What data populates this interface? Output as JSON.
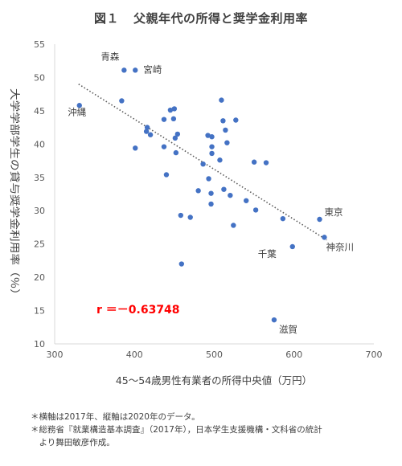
{
  "chart_data": {
    "type": "scatter",
    "title_num": "図１",
    "title": "父親年代の所得と奨学金利用率",
    "xlabel": "45～54歳男性有業者の所得中央値（万円）",
    "ylabel": "大学学部学生の貸与奨学金利用率（％）",
    "xlim": [
      300,
      700
    ],
    "ylim": [
      10,
      55
    ],
    "xticks": [
      300,
      400,
      500,
      600,
      700
    ],
    "yticks": [
      10,
      15,
      20,
      25,
      30,
      35,
      40,
      45,
      50,
      55
    ],
    "grid": false,
    "marker_color": "#4472C4",
    "trendline": {
      "style": "dotted",
      "color": "#595959",
      "x": [
        330,
        641
      ],
      "y": [
        49.0,
        25.6
      ]
    },
    "correlation_label": "r ＝－0.63748",
    "correlation_color": "#ff0000",
    "points": [
      {
        "x": 331,
        "y": 45.8,
        "label": "沖縄"
      },
      {
        "x": 387,
        "y": 51.1,
        "label": "青森"
      },
      {
        "x": 401,
        "y": 51.1,
        "label": "宮崎"
      },
      {
        "x": 384,
        "y": 46.5
      },
      {
        "x": 401,
        "y": 39.4
      },
      {
        "x": 415,
        "y": 41.9
      },
      {
        "x": 416,
        "y": 42.5
      },
      {
        "x": 420,
        "y": 41.4
      },
      {
        "x": 437,
        "y": 43.7
      },
      {
        "x": 437,
        "y": 39.6
      },
      {
        "x": 440,
        "y": 35.4
      },
      {
        "x": 445,
        "y": 45.1
      },
      {
        "x": 450,
        "y": 45.3
      },
      {
        "x": 449,
        "y": 43.8
      },
      {
        "x": 451,
        "y": 40.9
      },
      {
        "x": 452,
        "y": 38.7
      },
      {
        "x": 454,
        "y": 41.5
      },
      {
        "x": 458,
        "y": 29.3
      },
      {
        "x": 459,
        "y": 22.0
      },
      {
        "x": 470,
        "y": 29.0
      },
      {
        "x": 480,
        "y": 33.0
      },
      {
        "x": 486,
        "y": 37.0
      },
      {
        "x": 492,
        "y": 41.3
      },
      {
        "x": 493,
        "y": 34.8
      },
      {
        "x": 496,
        "y": 32.6
      },
      {
        "x": 496,
        "y": 31.0
      },
      {
        "x": 497,
        "y": 39.6
      },
      {
        "x": 497,
        "y": 38.6
      },
      {
        "x": 497,
        "y": 41.1
      },
      {
        "x": 507,
        "y": 37.6
      },
      {
        "x": 509,
        "y": 46.6
      },
      {
        "x": 511,
        "y": 43.5
      },
      {
        "x": 512,
        "y": 33.2
      },
      {
        "x": 514,
        "y": 42.1
      },
      {
        "x": 516,
        "y": 40.2
      },
      {
        "x": 520,
        "y": 32.3
      },
      {
        "x": 524,
        "y": 27.8
      },
      {
        "x": 527,
        "y": 43.6
      },
      {
        "x": 540,
        "y": 31.5
      },
      {
        "x": 550,
        "y": 37.3
      },
      {
        "x": 552,
        "y": 30.1
      },
      {
        "x": 565,
        "y": 37.2
      },
      {
        "x": 575,
        "y": 13.6,
        "label": "滋賀"
      },
      {
        "x": 586,
        "y": 28.8
      },
      {
        "x": 598,
        "y": 24.6,
        "label": "千葉"
      },
      {
        "x": 632,
        "y": 28.7,
        "label": "東京"
      },
      {
        "x": 638,
        "y": 26.0,
        "label": "神奈川"
      }
    ]
  },
  "notes": [
    "＊横軸は2017年、縦軸は2020年のデータ。",
    "＊総務省『就業構造基本調査』（2017年），日本学生支援機構・文科省の統計",
    "　より舞田敏彦作成。"
  ]
}
